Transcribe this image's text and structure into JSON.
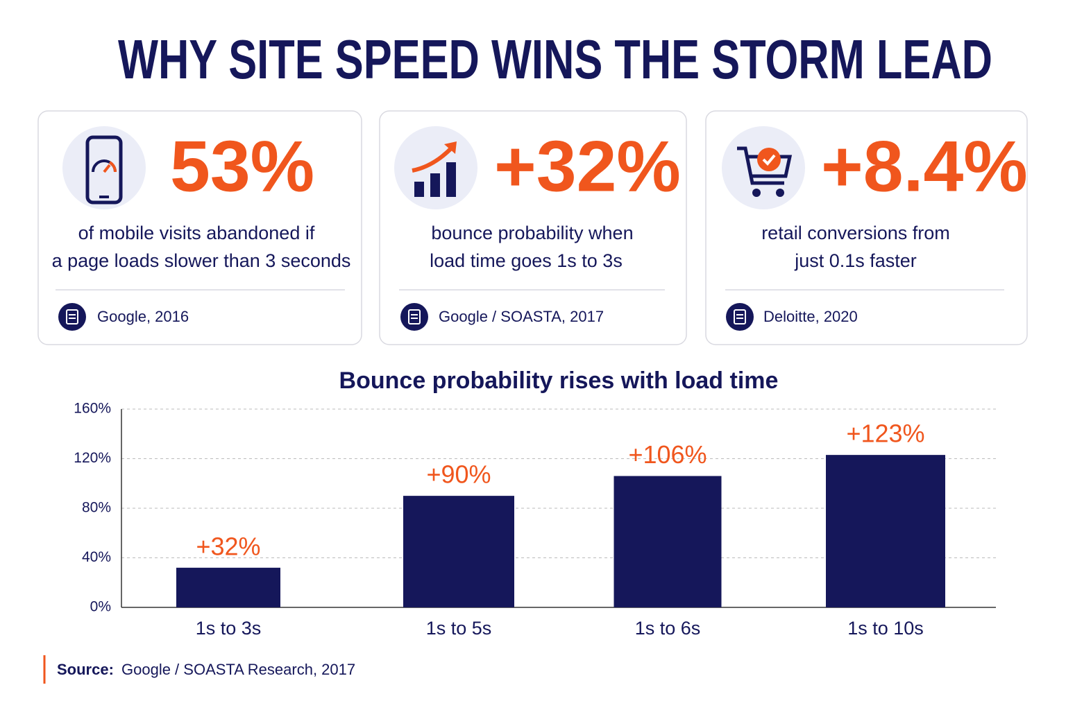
{
  "title": "WHY SITE SPEED WINS THE STORM LEAD",
  "cards": [
    {
      "stat": "53%",
      "text_lines": [
        "of mobile visits abandoned if",
        "a page loads slower than 3 seconds"
      ],
      "source": "Google, 2016"
    },
    {
      "stat": "+32%",
      "text_lines": [
        "bounce probability when",
        "load time goes 1s to 3s"
      ],
      "source": "Google / SOASTA, 2017"
    },
    {
      "stat": "+8.4%",
      "text_lines": [
        "retail conversions from",
        "just 0.1s faster"
      ],
      "source": "Deloitte, 2020"
    }
  ],
  "chart_data": {
    "type": "bar",
    "title": "Bounce probability rises with load time",
    "categories": [
      "1s to 3s",
      "1s to 5s",
      "1s to 6s",
      "1s to 10s"
    ],
    "values": [
      32,
      90,
      106,
      123
    ],
    "value_labels": [
      "+32%",
      "+90%",
      "+106%",
      "+123%"
    ],
    "color": "#15175a",
    "label_color": "#f0561d",
    "ylim": [
      0,
      160
    ],
    "yticks": [
      {
        "value": 0,
        "label": "0%"
      },
      {
        "value": 40,
        "label": "40%"
      },
      {
        "value": 80,
        "label": "80%"
      },
      {
        "value": 120,
        "label": "120%"
      },
      {
        "value": 160,
        "label": "160%"
      }
    ],
    "grid": true
  },
  "source": {
    "label": "Source:",
    "text": "Google / SOASTA Research, 2017"
  }
}
